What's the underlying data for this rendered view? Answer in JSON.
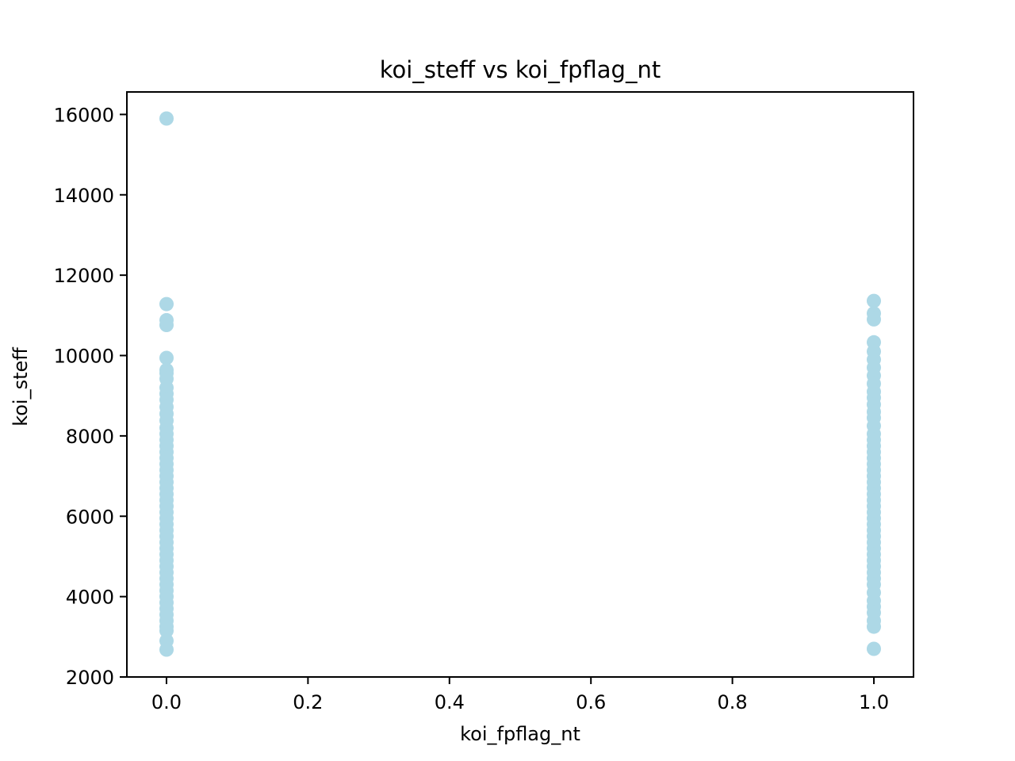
{
  "chart_data": {
    "type": "scatter",
    "title": "koi_steff vs koi_fpflag_nt",
    "xlabel": "koi_fpflag_nt",
    "ylabel": "koi_steff",
    "xlim": [
      -0.056,
      1.056
    ],
    "ylim": [
      2000,
      16560
    ],
    "x_ticks": [
      0.0,
      0.2,
      0.4,
      0.6,
      0.8,
      1.0
    ],
    "x_tick_labels": [
      "0.0",
      "0.2",
      "0.4",
      "0.6",
      "0.8",
      "1.0"
    ],
    "y_ticks": [
      2000,
      4000,
      6000,
      8000,
      10000,
      12000,
      14000,
      16000
    ],
    "y_tick_labels": [
      "2000",
      "4000",
      "6000",
      "8000",
      "10000",
      "12000",
      "14000",
      "16000"
    ],
    "grid": false,
    "marker_color": "#add8e6",
    "series": [
      {
        "points": [
          [
            0,
            15900
          ],
          [
            0,
            11280
          ],
          [
            0,
            10880
          ],
          [
            0,
            10760
          ],
          [
            0,
            9940
          ],
          [
            0,
            9640
          ],
          [
            0,
            9560
          ],
          [
            0,
            9420
          ],
          [
            0,
            9200
          ],
          [
            0,
            9050
          ],
          [
            0,
            8900
          ],
          [
            0,
            8720
          ],
          [
            0,
            8550
          ],
          [
            0,
            8380
          ],
          [
            0,
            8200
          ],
          [
            0,
            8050
          ],
          [
            0,
            7900
          ],
          [
            0,
            7750
          ],
          [
            0,
            7600
          ],
          [
            0,
            7450
          ],
          [
            0,
            7300
          ],
          [
            0,
            7150
          ],
          [
            0,
            7000
          ],
          [
            0,
            6850
          ],
          [
            0,
            6700
          ],
          [
            0,
            6550
          ],
          [
            0,
            6400
          ],
          [
            0,
            6250
          ],
          [
            0,
            6100
          ],
          [
            0,
            5950
          ],
          [
            0,
            5800
          ],
          [
            0,
            5650
          ],
          [
            0,
            5500
          ],
          [
            0,
            5350
          ],
          [
            0,
            5200
          ],
          [
            0,
            5050
          ],
          [
            0,
            4900
          ],
          [
            0,
            4750
          ],
          [
            0,
            4600
          ],
          [
            0,
            4450
          ],
          [
            0,
            4300
          ],
          [
            0,
            4150
          ],
          [
            0,
            4000
          ],
          [
            0,
            3850
          ],
          [
            0,
            3700
          ],
          [
            0,
            3550
          ],
          [
            0,
            3400
          ],
          [
            0,
            3250
          ],
          [
            0,
            3150
          ],
          [
            0,
            2900
          ],
          [
            0,
            2680
          ],
          [
            1,
            11360
          ],
          [
            1,
            11050
          ],
          [
            1,
            10900
          ],
          [
            1,
            10330
          ],
          [
            1,
            10100
          ],
          [
            1,
            9900
          ],
          [
            1,
            9700
          ],
          [
            1,
            9500
          ],
          [
            1,
            9300
          ],
          [
            1,
            9100
          ],
          [
            1,
            8950
          ],
          [
            1,
            8780
          ],
          [
            1,
            8600
          ],
          [
            1,
            8450
          ],
          [
            1,
            8250
          ],
          [
            1,
            8050
          ],
          [
            1,
            7900
          ],
          [
            1,
            7750
          ],
          [
            1,
            7600
          ],
          [
            1,
            7450
          ],
          [
            1,
            7300
          ],
          [
            1,
            7150
          ],
          [
            1,
            7000
          ],
          [
            1,
            6850
          ],
          [
            1,
            6700
          ],
          [
            1,
            6550
          ],
          [
            1,
            6400
          ],
          [
            1,
            6250
          ],
          [
            1,
            6100
          ],
          [
            1,
            5950
          ],
          [
            1,
            5800
          ],
          [
            1,
            5650
          ],
          [
            1,
            5500
          ],
          [
            1,
            5350
          ],
          [
            1,
            5200
          ],
          [
            1,
            5050
          ],
          [
            1,
            4900
          ],
          [
            1,
            4750
          ],
          [
            1,
            4600
          ],
          [
            1,
            4450
          ],
          [
            1,
            4300
          ],
          [
            1,
            4100
          ],
          [
            1,
            3900
          ],
          [
            1,
            3750
          ],
          [
            1,
            3600
          ],
          [
            1,
            3400
          ],
          [
            1,
            3250
          ],
          [
            1,
            2700
          ]
        ]
      }
    ]
  }
}
